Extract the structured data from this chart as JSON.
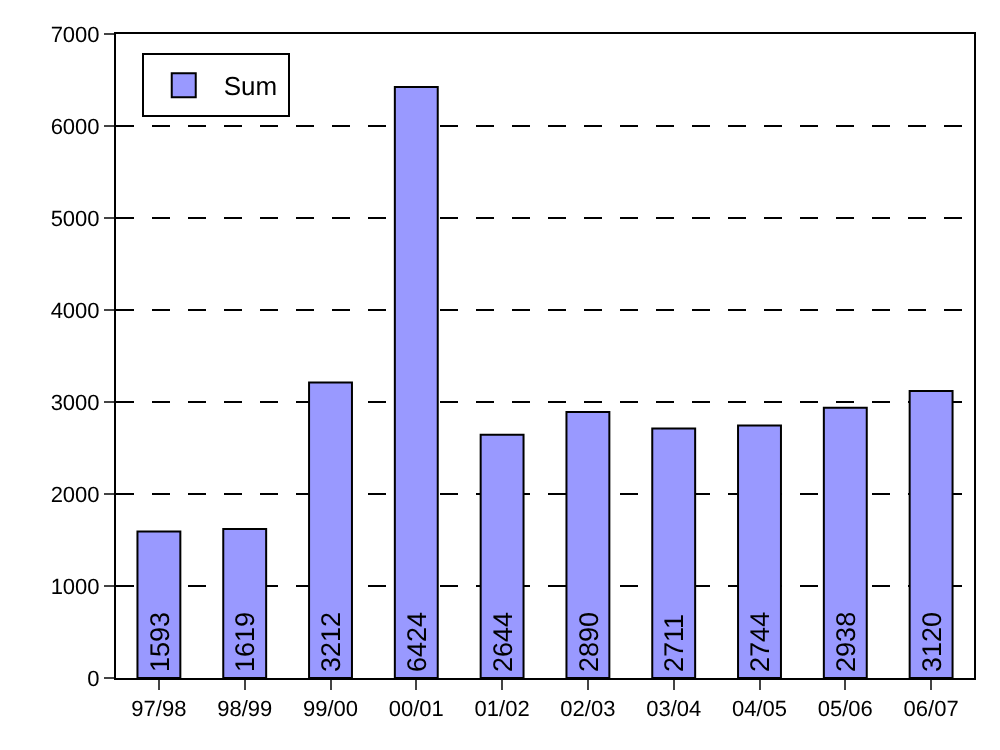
{
  "chart_data": {
    "type": "bar",
    "categories": [
      "97/98",
      "98/99",
      "99/00",
      "00/01",
      "01/02",
      "02/03",
      "03/04",
      "04/05",
      "05/06",
      "06/07"
    ],
    "series": [
      {
        "name": "Sum",
        "color": "#9999ff",
        "values": [
          1593,
          1619,
          3212,
          6424,
          2644,
          2890,
          2711,
          2744,
          2938,
          3120
        ]
      }
    ],
    "ylim": [
      0,
      7000
    ],
    "yticks": [
      0,
      1000,
      2000,
      3000,
      4000,
      5000,
      6000,
      7000
    ],
    "grid": "y",
    "legend": "top left",
    "data_labels": true
  }
}
